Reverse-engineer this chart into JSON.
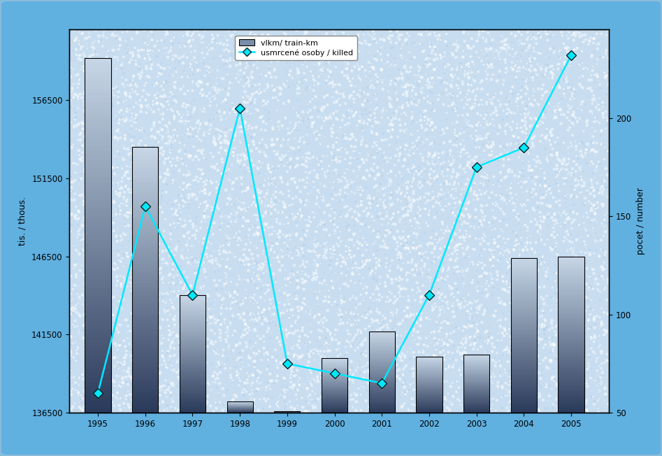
{
  "years": [
    1995,
    1996,
    1997,
    1998,
    1999,
    2000,
    2001,
    2002,
    2003,
    2004,
    2005
  ],
  "train_km": [
    159200,
    153500,
    144000,
    137200,
    136600,
    140000,
    141700,
    140100,
    140200,
    146400,
    146500
  ],
  "killed": [
    60,
    155,
    110,
    205,
    75,
    70,
    65,
    110,
    175,
    185,
    232
  ],
  "bar_color_top": "#c8d8e8",
  "bar_color_bottom": "#2a3a5a",
  "line_color": "#00e8ff",
  "marker_color": "#00e8ff",
  "marker_edge_color": "#002222",
  "background_outer": "#60b0e0",
  "background_inner_base": "#c8ddf0",
  "ylabel_left": "tis. / thous.",
  "ylabel_right": "pocet / number",
  "ylim_left": [
    136500,
    161000
  ],
  "ylim_right": [
    50,
    245
  ],
  "yticks_left": [
    136500,
    141500,
    146500,
    151500,
    156500
  ],
  "yticks_right": [
    50,
    100,
    150,
    200
  ],
  "legend_bar": "vlkm/ train-km",
  "legend_line": "usmrcené osoby / killed",
  "fig_width": 9.47,
  "fig_height": 6.52
}
